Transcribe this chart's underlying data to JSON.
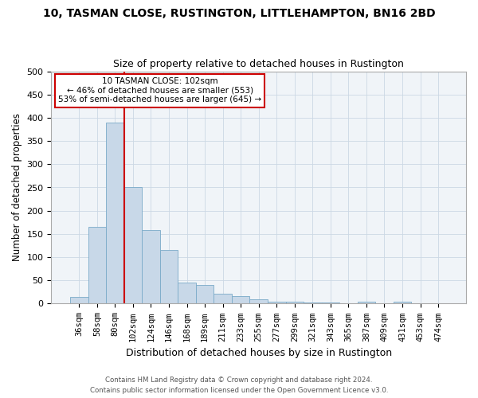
{
  "title": "10, TASMAN CLOSE, RUSTINGTON, LITTLEHAMPTON, BN16 2BD",
  "subtitle": "Size of property relative to detached houses in Rustington",
  "xlabel": "Distribution of detached houses by size in Rustington",
  "ylabel": "Number of detached properties",
  "bar_color": "#c8d8e8",
  "bar_edge_color": "#7aaac8",
  "categories": [
    "36sqm",
    "58sqm",
    "80sqm",
    "102sqm",
    "124sqm",
    "146sqm",
    "168sqm",
    "189sqm",
    "211sqm",
    "233sqm",
    "255sqm",
    "277sqm",
    "299sqm",
    "321sqm",
    "343sqm",
    "365sqm",
    "387sqm",
    "409sqm",
    "431sqm",
    "453sqm",
    "474sqm"
  ],
  "values": [
    15,
    165,
    390,
    250,
    158,
    115,
    45,
    40,
    22,
    16,
    10,
    5,
    4,
    2,
    3,
    0,
    4,
    0,
    5,
    0,
    0
  ],
  "vline_x_index": 2.5,
  "vline_color": "#cc0000",
  "annotation_line1": "10 TASMAN CLOSE: 102sqm",
  "annotation_line2": "← 46% of detached houses are smaller (553)",
  "annotation_line3": "53% of semi-detached houses are larger (645) →",
  "annotation_box_color": "#ffffff",
  "annotation_box_edge": "#cc0000",
  "ylim": [
    0,
    500
  ],
  "yticks": [
    0,
    50,
    100,
    150,
    200,
    250,
    300,
    350,
    400,
    450,
    500
  ],
  "footer1": "Contains HM Land Registry data © Crown copyright and database right 2024.",
  "footer2": "Contains public sector information licensed under the Open Government Licence v3.0."
}
